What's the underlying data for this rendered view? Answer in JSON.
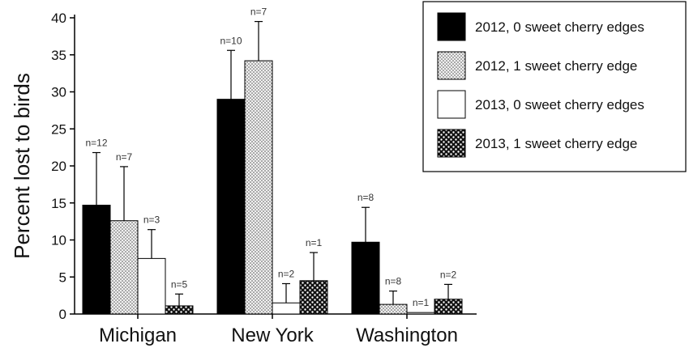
{
  "chart_data": {
    "type": "bar",
    "title": "",
    "xlabel": "",
    "ylabel": "Percent lost to birds",
    "ylim": [
      0,
      40
    ],
    "yticks": [
      0,
      5,
      10,
      15,
      20,
      25,
      30,
      35,
      40
    ],
    "categories": [
      "Michigan",
      "New York",
      "Washington"
    ],
    "legend_position": "top-right",
    "series": [
      {
        "name": "2012, 0 sweet cherry edges",
        "pattern": "solid-black",
        "values": [
          14.7,
          29.0,
          9.7
        ],
        "errors": [
          7.1,
          6.6,
          4.7
        ],
        "n_labels": [
          "n=12",
          "n=10",
          "n=8"
        ]
      },
      {
        "name": "2012, 1 sweet cherry edge",
        "pattern": "fine-dots",
        "values": [
          12.6,
          34.2,
          1.3
        ],
        "errors": [
          7.3,
          5.3,
          1.8
        ],
        "n_labels": [
          "n=7",
          "n=7",
          "n=8"
        ]
      },
      {
        "name": "2013, 0 sweet cherry edges",
        "pattern": "white",
        "values": [
          7.5,
          1.5,
          0.2
        ],
        "errors": [
          3.9,
          2.6,
          0
        ],
        "n_labels": [
          "n=3",
          "n=2",
          "n=1"
        ]
      },
      {
        "name": "2013, 1 sweet cherry edge",
        "pattern": "coarse-dots",
        "values": [
          1.1,
          4.5,
          2.0
        ],
        "errors": [
          1.6,
          3.8,
          2.0
        ],
        "n_labels": [
          "n=5",
          "n=1",
          "n=2"
        ]
      }
    ]
  }
}
